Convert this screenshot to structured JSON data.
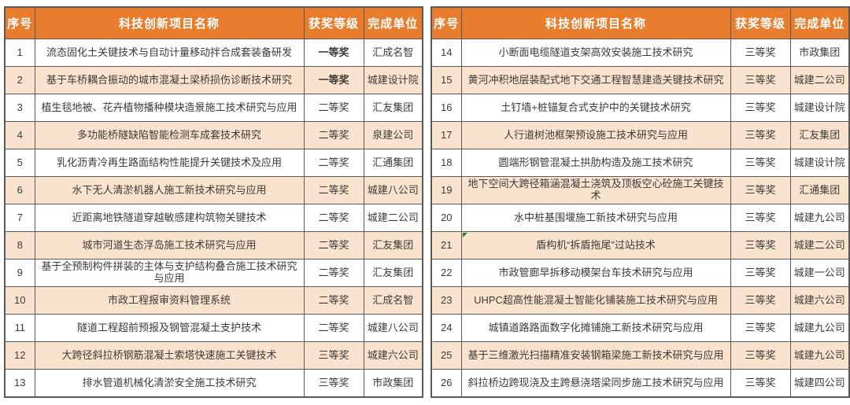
{
  "colors": {
    "header_bg": "#E87E2D",
    "header_text": "#FFFFFF",
    "row_alt_bg": "#FAE3CE",
    "border": "#595959",
    "text": "#3D3A38",
    "bold_text": "#111111",
    "flag": "#2E7D32"
  },
  "tables": [
    {
      "headers": {
        "index": "序号",
        "name": "科技创新项目名称",
        "award": "获奖等级",
        "unit": "完成单位"
      },
      "rows": [
        {
          "index": "1",
          "name": "流态固化土关键技术与自动计量移动拌合成套装备研发",
          "award": "一等奖",
          "unit": "汇成名智",
          "award_bold": true
        },
        {
          "index": "2",
          "name": "基于车桥耦合振动的城市混凝土梁桥损伤诊断技术研究",
          "award": "一等奖",
          "unit": "城建设计院",
          "award_bold": true
        },
        {
          "index": "3",
          "name": "植生毯地被、花卉植物播种模块造景施工技术研究与应用",
          "award": "二等奖",
          "unit": "汇友集团"
        },
        {
          "index": "4",
          "name": "多功能桥隧缺陷智能检测车成套技术研究",
          "award": "二等奖",
          "unit": "泉建公司"
        },
        {
          "index": "5",
          "name": "乳化沥青冷再生路面结构性能提升关键技术及应用",
          "award": "二等奖",
          "unit": "汇通集团"
        },
        {
          "index": "6",
          "name": "水下无人清淤机器人施工新技术研究与应用",
          "award": "二等奖",
          "unit": "城建八公司"
        },
        {
          "index": "7",
          "name": "近距离地铁隧道穿越敏感建构筑物关键技术",
          "award": "二等奖",
          "unit": "城建二公司"
        },
        {
          "index": "8",
          "name": "城市河道生态浮岛施工技术研究与应用",
          "award": "二等奖",
          "unit": "汇友集团"
        },
        {
          "index": "9",
          "name": "基于全预制构件拼装的主体与支护结构叠合施工技术研究与应用",
          "award": "二等奖",
          "unit": "汇友集团"
        },
        {
          "index": "10",
          "name": "市政工程报审资料管理系统",
          "award": "二等奖",
          "unit": "汇成名智"
        },
        {
          "index": "11",
          "name": "隧道工程超前预报及钢管混凝土支护技术",
          "award": "二等奖",
          "unit": "城建八公司"
        },
        {
          "index": "12",
          "name": "大跨径斜拉桥钢筋混凝土索塔快速施工关键技术",
          "award": "三等奖",
          "unit": "城建六公司"
        },
        {
          "index": "13",
          "name": "排水管道机械化清淤安全施工技术研究",
          "award": "三等奖",
          "unit": "市政集团"
        }
      ]
    },
    {
      "headers": {
        "index": "序号",
        "name": "科技创新项目名称",
        "award": "获奖等级",
        "unit": "完成单位"
      },
      "rows": [
        {
          "index": "14",
          "name": "小断面电缆隧道支架高效安装施工技术研究",
          "award": "三等奖",
          "unit": "市政集团"
        },
        {
          "index": "15",
          "name": "黄河冲积地层装配式地下交通工程智慧建造关键技术研究",
          "award": "三等奖",
          "unit": "城建二公司"
        },
        {
          "index": "16",
          "name": "土钉墙+桩锚复合式支护中的关键技术研究",
          "award": "三等奖",
          "unit": "城建设计院"
        },
        {
          "index": "17",
          "name": "人行道树池框架预设施工技术研究与应用",
          "award": "三等奖",
          "unit": "汇友集团"
        },
        {
          "index": "18",
          "name": "圆端形钢管混凝土拱肋构造及施工技术研究",
          "award": "三等奖",
          "unit": "城建设计院"
        },
        {
          "index": "19",
          "name": "地下空间大跨径箱涵混凝土浇筑及顶板空心砼施工关键技术",
          "award": "三等奖",
          "unit": "汇通集团"
        },
        {
          "index": "20",
          "name": "水中桩基围堰施工新技术研究与应用",
          "award": "三等奖",
          "unit": "城建九公司"
        },
        {
          "index": "21",
          "name": "盾构机“拆盾拖尾”过站技术",
          "award": "三等奖",
          "unit": "城建二公司",
          "corner_flag": true
        },
        {
          "index": "22",
          "name": "市政管廊早拆移动模架台车技术研究与应用",
          "award": "三等奖",
          "unit": "城建一公司"
        },
        {
          "index": "23",
          "name": "UHPC超高性能混凝土智能化铺装施工技术研究与应用",
          "award": "三等奖",
          "unit": "城建六公司"
        },
        {
          "index": "24",
          "name": "城镇道路路面数字化摊铺施工新技术研究与应用",
          "award": "三等奖",
          "unit": "城建九公司"
        },
        {
          "index": "25",
          "name": "基于三维激光扫描精准安装钢箱梁施工新技术研究与应用",
          "award": "三等奖",
          "unit": "城建九公司"
        },
        {
          "index": "26",
          "name": "斜拉桥边跨现浇及主跨悬浇塔梁同步施工技术研究与应用",
          "award": "三等奖",
          "unit": "城建四公司"
        }
      ]
    }
  ]
}
